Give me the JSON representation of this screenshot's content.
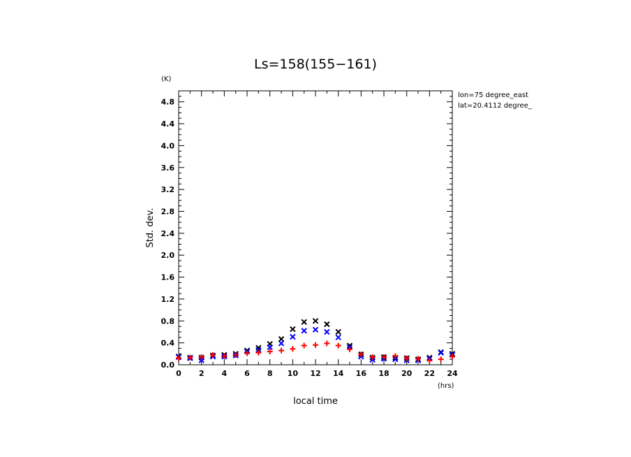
{
  "chart_data": {
    "type": "scatter",
    "title": "Ls=158(155−161)",
    "xlabel": "local time",
    "ylabel": "Std. dev.",
    "x_unit": "(hrs)",
    "y_unit": "(K)",
    "xlim": [
      0,
      24
    ],
    "ylim": [
      0,
      5.0
    ],
    "x_ticks": [
      "0",
      "2",
      "4",
      "6",
      "8",
      "10",
      "12",
      "14",
      "16",
      "18",
      "20",
      "22",
      "24"
    ],
    "y_ticks": [
      "0.0",
      "0.4",
      "0.8",
      "1.2",
      "1.6",
      "2.0",
      "2.4",
      "2.8",
      "3.2",
      "3.6",
      "4.0",
      "4.4",
      "4.8"
    ],
    "annotations": [
      "lon=75 degree_east",
      "lat=20.4112 degree_"
    ],
    "grid": false,
    "series": [
      {
        "marker": "x",
        "color": "#000000",
        "x": [
          0,
          1,
          2,
          3,
          4,
          5,
          6,
          7,
          8,
          9,
          10,
          11,
          12,
          13,
          14,
          15,
          16,
          17,
          18,
          19,
          20,
          21,
          22,
          23,
          24
        ],
        "values": [
          0.15,
          0.13,
          0.13,
          0.17,
          0.18,
          0.2,
          0.26,
          0.31,
          0.38,
          0.47,
          0.65,
          0.78,
          0.8,
          0.74,
          0.6,
          0.35,
          0.19,
          0.13,
          0.14,
          0.13,
          0.12,
          0.1,
          0.13,
          0.23,
          0.2
        ]
      },
      {
        "marker": "x",
        "color": "#0000ff",
        "x": [
          0,
          1,
          2,
          3,
          4,
          5,
          6,
          7,
          8,
          9,
          10,
          11,
          12,
          13,
          14,
          15,
          16,
          17,
          18,
          19,
          20,
          21,
          22,
          23,
          24
        ],
        "values": [
          0.14,
          0.12,
          0.08,
          0.15,
          0.15,
          0.17,
          0.24,
          0.27,
          0.32,
          0.39,
          0.51,
          0.62,
          0.64,
          0.6,
          0.5,
          0.32,
          0.15,
          0.09,
          0.11,
          0.1,
          0.08,
          0.08,
          0.11,
          0.22,
          0.18
        ]
      },
      {
        "marker": "+",
        "color": "#ff0000",
        "x": [
          0,
          1,
          2,
          3,
          4,
          5,
          6,
          7,
          8,
          9,
          10,
          11,
          12,
          13,
          14,
          15,
          16,
          17,
          18,
          19,
          20,
          21,
          22,
          23,
          24
        ],
        "values": [
          0.12,
          0.13,
          0.14,
          0.18,
          0.16,
          0.18,
          0.21,
          0.22,
          0.24,
          0.26,
          0.29,
          0.35,
          0.36,
          0.39,
          0.35,
          0.28,
          0.19,
          0.14,
          0.14,
          0.16,
          0.12,
          0.11,
          0.08,
          0.1,
          0.15
        ]
      }
    ]
  }
}
